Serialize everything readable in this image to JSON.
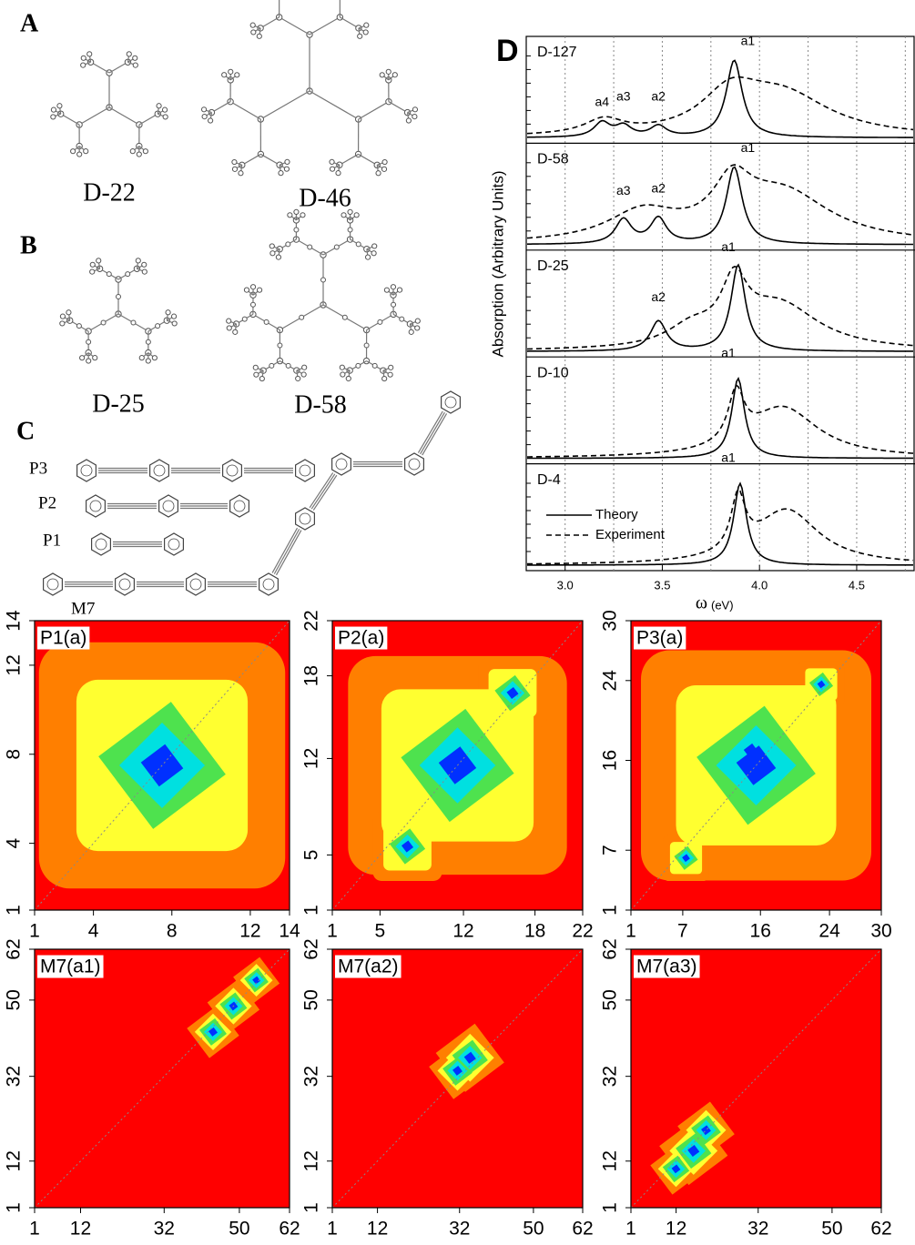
{
  "panels": {
    "A": {
      "label": "A",
      "molecules": [
        "D-22",
        "D-46"
      ]
    },
    "B": {
      "label": "B",
      "molecules": [
        "D-25",
        "D-58"
      ]
    },
    "C": {
      "label": "C",
      "chains": [
        "P3",
        "P2",
        "P1",
        "M7"
      ]
    },
    "D": {
      "label": "D",
      "y_label": "Absorption (Arbitrary Units)",
      "x_label": "ω",
      "x_unit": "(eV)",
      "xlim": [
        2.8,
        4.8
      ],
      "xticks": [
        {
          "value": 3,
          "label": "3.0"
        },
        {
          "value": 3.5,
          "label": "3.5"
        },
        {
          "value": 4,
          "label": "4.0"
        },
        {
          "value": 4.5,
          "label": "4.5"
        }
      ],
      "legend": [
        "Theory",
        "Experiment"
      ],
      "spectra": [
        {
          "name": "D-127",
          "peaks": [
            "a4",
            "a3",
            "a2",
            "a1"
          ]
        },
        {
          "name": "D-58",
          "peaks": [
            "a3",
            "a2",
            "a1"
          ]
        },
        {
          "name": "D-25",
          "peaks": [
            "a2",
            "a1"
          ]
        },
        {
          "name": "D-10",
          "peaks": [
            "a1"
          ]
        },
        {
          "name": "D-4",
          "peaks": [
            "a1"
          ]
        }
      ]
    },
    "maps": [
      {
        "label": "P1(a)",
        "lim": [
          1,
          14
        ],
        "ticks": [
          1,
          4,
          8,
          12,
          14
        ]
      },
      {
        "label": "P2(a)",
        "lim": [
          1,
          22
        ],
        "ticks": [
          1,
          5,
          12,
          18,
          22
        ]
      },
      {
        "label": "P3(a)",
        "lim": [
          1,
          30
        ],
        "ticks": [
          1,
          7,
          16,
          24,
          30
        ]
      },
      {
        "label": "M7(a1)",
        "lim": [
          1,
          62
        ],
        "ticks": [
          1,
          12,
          32,
          50,
          62
        ]
      },
      {
        "label": "M7(a2)",
        "lim": [
          1,
          62
        ],
        "ticks": [
          1,
          12,
          32,
          50,
          62
        ]
      },
      {
        "label": "M7(a3)",
        "lim": [
          1,
          62
        ],
        "ticks": [
          1,
          12,
          32,
          50,
          62
        ]
      }
    ]
  }
}
